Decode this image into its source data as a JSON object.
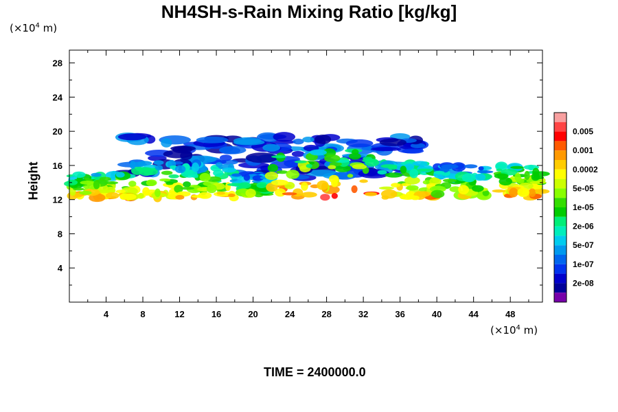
{
  "chart_data": {
    "type": "heatmap",
    "title": "NH4SH-s-Rain Mixing Ratio [kg/kg]",
    "ylabel": "Height",
    "x_unit": "(×10⁴ m)",
    "y_unit": "(×10⁴ m)",
    "unit_prefix": "(×10",
    "unit_exp": "4",
    "unit_suffix": " m)",
    "xlim": [
      0,
      51.5
    ],
    "ylim": [
      0,
      29.5
    ],
    "x_ticks": [
      "4",
      "8",
      "12",
      "16",
      "20",
      "24",
      "28",
      "32",
      "36",
      "40",
      "44",
      "48"
    ],
    "x_tick_values": [
      4,
      8,
      12,
      16,
      20,
      24,
      28,
      32,
      36,
      40,
      44,
      48
    ],
    "y_ticks": [
      "4",
      "8",
      "12",
      "16",
      "20",
      "24",
      "28"
    ],
    "y_tick_values": [
      4,
      8,
      12,
      16,
      20,
      24,
      28
    ],
    "colorbar": {
      "colors": [
        "#f8a0a0",
        "#ff4444",
        "#ff0000",
        "#ff5a00",
        "#ff9900",
        "#ffcc00",
        "#ffff00",
        "#ccff00",
        "#88ff00",
        "#33dd00",
        "#00cc00",
        "#00ee77",
        "#00eebb",
        "#00ccee",
        "#0099ee",
        "#0066ee",
        "#0033ee",
        "#0000cc",
        "#000099",
        "#7700aa"
      ],
      "labels": [
        "0.005",
        "0.001",
        "0.0002",
        "5e-05",
        "1e-05",
        "2e-06",
        "5e-07",
        "1e-07",
        "2e-08"
      ],
      "label_levels": [
        1,
        3,
        5,
        7,
        9,
        11,
        13,
        15,
        17
      ]
    },
    "field": {
      "cells": [
        {
          "x": [
            0,
            5
          ],
          "y": [
            12.2,
            15.0
          ],
          "level": 4
        },
        {
          "x": [
            5.5,
            12
          ],
          "y": [
            12.2,
            16.5
          ],
          "level": 5
        },
        {
          "x": [
            12,
            18
          ],
          "y": [
            12.2,
            16.3
          ],
          "level": 5
        },
        {
          "x": [
            18,
            22
          ],
          "y": [
            12.5,
            15.0
          ],
          "level": 7
        },
        {
          "x": [
            22,
            33
          ],
          "y": [
            12.2,
            17.8
          ],
          "level": 3
        },
        {
          "x": [
            34,
            40
          ],
          "y": [
            12.2,
            16.3
          ],
          "level": 4
        },
        {
          "x": [
            40,
            45.5
          ],
          "y": [
            12.2,
            16.0
          ],
          "level": 6
        },
        {
          "x": [
            46.5,
            51.5
          ],
          "y": [
            12.2,
            16.0
          ],
          "level": 4
        }
      ],
      "anvil": {
        "x": [
          6,
          38
        ],
        "y": [
          14.5,
          19.5
        ],
        "level": 15
      }
    }
  },
  "time_label": "TIME = 2400000.0"
}
